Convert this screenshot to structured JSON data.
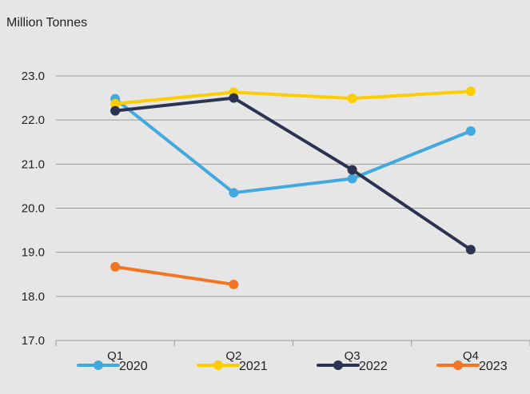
{
  "chart_data": {
    "type": "line",
    "title": "",
    "ylabel": "Million Tonnes",
    "xlabel": "",
    "categories": [
      "Q1",
      "Q2",
      "Q3",
      "Q4"
    ],
    "ylim": [
      17.0,
      23.0
    ],
    "yticks": [
      "23.0",
      "22.0",
      "21.0",
      "20.0",
      "19.0",
      "18.0",
      "17.0"
    ],
    "ytick_values": [
      23.0,
      22.0,
      21.0,
      20.0,
      19.0,
      18.0,
      17.0
    ],
    "grid": true,
    "legend_position": "bottom",
    "series": [
      {
        "name": "2020",
        "color": "#41a9de",
        "values": [
          22.48,
          20.35,
          20.67,
          21.75
        ]
      },
      {
        "name": "2021",
        "color": "#ffcc00",
        "values": [
          22.37,
          22.63,
          22.49,
          22.65
        ]
      },
      {
        "name": "2022",
        "color": "#2c3352",
        "values": [
          22.21,
          22.5,
          20.87,
          19.06
        ]
      },
      {
        "name": "2023",
        "color": "#f47521",
        "values": [
          18.67,
          18.27,
          null,
          null
        ]
      }
    ]
  }
}
